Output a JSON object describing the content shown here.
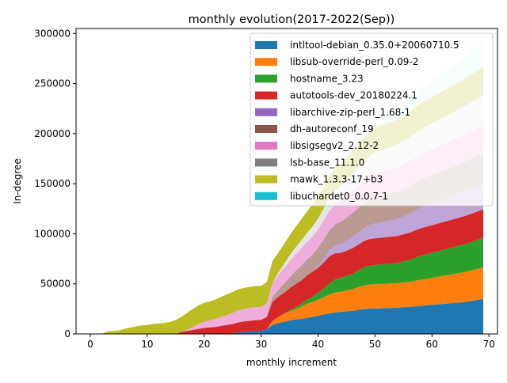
{
  "chart_data": {
    "type": "area",
    "stacked": true,
    "title": "monthly evolution(2017-2022(Sep))",
    "xlabel": "monthly increment",
    "ylabel": "In-degree",
    "xlim": [
      -2.5,
      71.5
    ],
    "ylim": [
      0,
      305000
    ],
    "x_ticks": [
      0,
      10,
      20,
      30,
      40,
      50,
      60,
      70
    ],
    "y_ticks": [
      0,
      50000,
      100000,
      150000,
      200000,
      250000,
      300000
    ],
    "grid": false,
    "legend_position": "top-right",
    "x": [
      0,
      1,
      2,
      3,
      4,
      5,
      6,
      7,
      8,
      9,
      10,
      11,
      12,
      13,
      14,
      15,
      16,
      17,
      18,
      19,
      20,
      21,
      22,
      23,
      24,
      25,
      26,
      27,
      28,
      29,
      30,
      31,
      32,
      33,
      34,
      35,
      36,
      37,
      38,
      39,
      40,
      41,
      42,
      43,
      44,
      45,
      46,
      47,
      48,
      49,
      50,
      51,
      52,
      53,
      54,
      55,
      56,
      57,
      58,
      59,
      60,
      61,
      62,
      63,
      64,
      65,
      66,
      67,
      68,
      69
    ],
    "series": [
      {
        "name": "intltool-debian_0.35.0+20060710.5",
        "color": "#1f77b4",
        "fill_opacity": 1.0,
        "values": [
          0,
          0,
          0,
          0,
          0,
          0,
          0,
          0,
          0,
          0,
          0,
          0,
          0,
          0,
          0,
          0,
          0,
          0,
          0,
          0,
          0,
          0,
          0,
          0,
          0,
          500,
          1500,
          2000,
          2500,
          2800,
          3000,
          5000,
          9000,
          11000,
          12000,
          13500,
          14500,
          15000,
          16000,
          17000,
          18000,
          19500,
          20500,
          21500,
          22000,
          22500,
          23000,
          24000,
          25000,
          25200,
          25400,
          25600,
          25800,
          26000,
          26300,
          26700,
          27000,
          27500,
          28000,
          28500,
          29000,
          29500,
          30000,
          30500,
          31000,
          31500,
          32000,
          33000,
          34000,
          35000
        ]
      },
      {
        "name": "libsub-override-perl_0.09-2",
        "color": "#ff7f0e",
        "fill_opacity": 1.0,
        "values": [
          0,
          0,
          0,
          0,
          0,
          0,
          0,
          0,
          0,
          0,
          0,
          0,
          0,
          0,
          0,
          0,
          0,
          0,
          0,
          0,
          0,
          0,
          0,
          0,
          0,
          0,
          0,
          0,
          0,
          0,
          0,
          0,
          4000,
          6000,
          8000,
          9000,
          10000,
          12000,
          14000,
          15000,
          16000,
          17000,
          19000,
          20000,
          20000,
          21000,
          21500,
          22500,
          23500,
          24000,
          24200,
          24300,
          24400,
          24500,
          24600,
          24700,
          25000,
          25500,
          26000,
          26500,
          27000,
          27500,
          28000,
          28500,
          29000,
          29500,
          30000,
          30500,
          31000,
          31500
        ]
      },
      {
        "name": "hostname_3.23",
        "color": "#2ca02c",
        "fill_opacity": 1.0,
        "values": [
          0,
          0,
          0,
          0,
          0,
          0,
          0,
          0,
          0,
          0,
          0,
          0,
          0,
          0,
          0,
          0,
          0,
          0,
          0,
          0,
          0,
          0,
          0,
          0,
          0,
          0,
          0,
          0,
          0,
          0,
          0,
          0,
          0,
          0,
          0,
          1000,
          2000,
          3000,
          4000,
          5000,
          7000,
          9000,
          11000,
          13000,
          14000,
          14500,
          15500,
          16500,
          18000,
          19000,
          19200,
          19400,
          19600,
          19800,
          20000,
          21000,
          22000,
          23000,
          24000,
          24500,
          25000,
          25500,
          26000,
          26500,
          27000,
          27500,
          28000,
          28500,
          29000,
          29500
        ]
      },
      {
        "name": "autotools-dev_20180224.1",
        "color": "#d62728",
        "fill_opacity": 1.0,
        "values": [
          0,
          0,
          0,
          0,
          0,
          0,
          0,
          0,
          0,
          0,
          0,
          0,
          0,
          0,
          0,
          0,
          2000,
          3000,
          4000,
          5000,
          6000,
          6500,
          7000,
          8000,
          9000,
          9500,
          10000,
          10500,
          10500,
          11000,
          11000,
          12000,
          19000,
          20000,
          21000,
          22000,
          23000,
          23000,
          24000,
          25000,
          25000,
          26000,
          27000,
          26000,
          25000,
          25000,
          25500,
          26000,
          26000,
          26500,
          26600,
          26700,
          26800,
          26900,
          27000,
          27000,
          27000,
          27200,
          27400,
          27500,
          27500,
          27600,
          27700,
          27800,
          27900,
          28000,
          28100,
          28200,
          28300,
          28400
        ]
      },
      {
        "name": "libarchive-zip-perl_1.68-1",
        "color": "#9467bd",
        "fill_opacity": 0.6,
        "values": [
          0,
          0,
          0,
          0,
          0,
          0,
          0,
          0,
          0,
          0,
          0,
          0,
          0,
          0,
          0,
          0,
          0,
          0,
          0,
          0,
          0,
          0,
          0,
          0,
          0,
          0,
          0,
          0,
          0,
          0,
          0,
          0,
          0,
          0,
          0,
          0,
          0,
          0,
          0,
          0,
          2000,
          4000,
          6000,
          8000,
          9000,
          10000,
          11000,
          12000,
          13000,
          14000,
          15000,
          15500,
          16000,
          16500,
          17000,
          18000,
          19000,
          20000,
          21000,
          21500,
          22000,
          22500,
          23000,
          23500,
          24000,
          24500,
          25000,
          25500,
          26000,
          26500
        ]
      },
      {
        "name": "dh-autoreconf_19",
        "color": "#8c564b",
        "fill_opacity": 0.6,
        "values": [
          0,
          0,
          0,
          0,
          0,
          0,
          0,
          0,
          0,
          0,
          0,
          0,
          0,
          0,
          0,
          0,
          0,
          0,
          0,
          0,
          0,
          0,
          0,
          0,
          0,
          0,
          0,
          0,
          0,
          0,
          0,
          0,
          5000,
          7000,
          9000,
          11000,
          13000,
          15000,
          16000,
          17000,
          18000,
          19000,
          20000,
          21000,
          22000,
          23000,
          24000,
          24500,
          25000,
          25500,
          26000,
          26200,
          26400,
          26600,
          26800,
          27000,
          27200,
          27400,
          27600,
          27800,
          28000,
          28200,
          28400,
          28600,
          28800,
          29000,
          29200,
          29400,
          29600,
          29800
        ]
      },
      {
        "name": "libsigsegv2_2.12-2",
        "color": "#e377c2",
        "fill_opacity": 0.6,
        "values": [
          0,
          0,
          0,
          0,
          0,
          0,
          0,
          0,
          0,
          0,
          0,
          0,
          0,
          0,
          0,
          0,
          0,
          1000,
          3000,
          5000,
          6000,
          7000,
          8000,
          9000,
          10000,
          11000,
          12000,
          12500,
          13000,
          13000,
          13000,
          13500,
          14000,
          15000,
          15500,
          16000,
          16500,
          17000,
          17500,
          18000,
          18500,
          19000,
          19500,
          20000,
          20500,
          21000,
          21500,
          22000,
          22500,
          23000,
          23500,
          24000,
          24200,
          24400,
          24600,
          24800,
          25000,
          25200,
          25400,
          25600,
          25800,
          26000,
          26200,
          26400,
          26600,
          26800,
          27000,
          27200,
          27400,
          27600
        ]
      },
      {
        "name": "lsb-base_11.1.0",
        "color": "#7f7f7f",
        "fill_opacity": 0.2,
        "values": [
          0,
          0,
          0,
          0,
          0,
          0,
          0,
          0,
          0,
          0,
          0,
          0,
          0,
          0,
          0,
          0,
          0,
          0,
          0,
          0,
          0,
          0,
          0,
          0,
          0,
          0,
          0,
          0,
          0,
          0,
          0,
          0,
          0,
          2000,
          4000,
          6000,
          7000,
          8000,
          9000,
          10000,
          11000,
          12000,
          13000,
          14000,
          15000,
          16000,
          17000,
          18000,
          19000,
          20000,
          21000,
          21500,
          22000,
          22500,
          23000,
          23500,
          24000,
          24500,
          25000,
          25500,
          26000,
          26500,
          27000,
          27500,
          28000,
          28500,
          29000,
          29500,
          30000,
          30500
        ]
      },
      {
        "name": "mawk_1.3.3-17+b3",
        "color": "#bcbd22",
        "fill_opacity": 1.0,
        "values": [
          0,
          0,
          0,
          2500,
          3000,
          3500,
          5000,
          6500,
          7500,
          8500,
          9000,
          10000,
          10500,
          11000,
          12000,
          14000,
          15000,
          17000,
          18000,
          18500,
          19000,
          19000,
          19500,
          20000,
          20500,
          21000,
          21000,
          21000,
          21000,
          21000,
          21000,
          21500,
          22000,
          20000,
          20000,
          20000,
          20500,
          21000,
          21500,
          22000,
          22000,
          22000,
          22500,
          22500,
          23000,
          23000,
          23500,
          23500,
          24000,
          24000,
          24200,
          24400,
          24600,
          24800,
          25000,
          25200,
          25400,
          25600,
          25800,
          26000,
          26200,
          26400,
          26600,
          26800,
          27000,
          27200,
          27400,
          27600,
          27800,
          28000
        ]
      },
      {
        "name": "libuchardet0_0.0.7-1",
        "color": "#17becf",
        "fill_opacity": 0.2,
        "values": [
          0,
          0,
          0,
          0,
          0,
          0,
          0,
          0,
          0,
          0,
          0,
          0,
          0,
          0,
          0,
          0,
          0,
          0,
          0,
          0,
          0,
          0,
          0,
          0,
          0,
          0,
          0,
          0,
          0,
          0,
          0,
          0,
          0,
          0,
          0,
          0,
          0,
          0,
          0,
          0,
          0,
          0,
          0,
          0,
          0,
          0,
          0,
          0,
          0,
          1000,
          2000,
          3000,
          4500,
          6000,
          7500,
          9000,
          10500,
          12000,
          13500,
          15000,
          16000,
          17000,
          18500,
          19500,
          20500,
          21500,
          22500,
          23500,
          24500,
          25500
        ]
      }
    ]
  }
}
